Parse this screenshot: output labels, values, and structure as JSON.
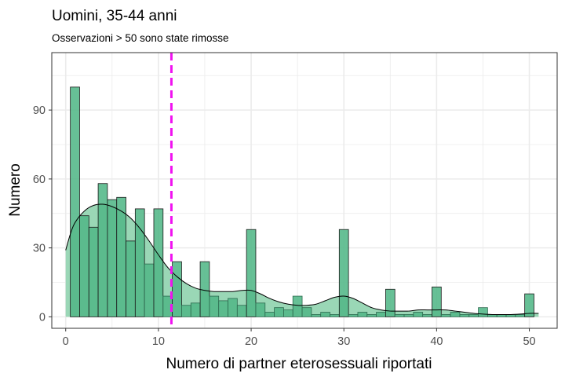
{
  "chart_data": {
    "type": "histogram",
    "title": "Uomini, 35-44 anni",
    "subtitle": "Osservazioni > 50 sono state rimosse",
    "xlabel": "Numero di partner eterosessuali riportati",
    "ylabel": "Numero",
    "xlim": [
      -1.5,
      53
    ],
    "ylim": [
      -5,
      115
    ],
    "x_ticks": [
      0,
      10,
      20,
      30,
      40,
      50
    ],
    "y_ticks": [
      0,
      30,
      60,
      90
    ],
    "x_tick_labels": [
      "0",
      "10",
      "20",
      "30",
      "40",
      "50"
    ],
    "y_tick_labels": [
      "0",
      "30",
      "60",
      "90"
    ],
    "bin_width": 1,
    "bins": [
      {
        "x": 1,
        "count": 100
      },
      {
        "x": 2,
        "count": 44
      },
      {
        "x": 3,
        "count": 39
      },
      {
        "x": 4,
        "count": 58
      },
      {
        "x": 5,
        "count": 51
      },
      {
        "x": 6,
        "count": 52
      },
      {
        "x": 7,
        "count": 33
      },
      {
        "x": 8,
        "count": 47
      },
      {
        "x": 9,
        "count": 23
      },
      {
        "x": 10,
        "count": 47
      },
      {
        "x": 11,
        "count": 9
      },
      {
        "x": 12,
        "count": 24
      },
      {
        "x": 13,
        "count": 5
      },
      {
        "x": 14,
        "count": 6
      },
      {
        "x": 15,
        "count": 24
      },
      {
        "x": 16,
        "count": 9
      },
      {
        "x": 17,
        "count": 7
      },
      {
        "x": 18,
        "count": 8
      },
      {
        "x": 19,
        "count": 5
      },
      {
        "x": 20,
        "count": 38
      },
      {
        "x": 21,
        "count": 6
      },
      {
        "x": 22,
        "count": 2
      },
      {
        "x": 23,
        "count": 4
      },
      {
        "x": 24,
        "count": 3
      },
      {
        "x": 25,
        "count": 9
      },
      {
        "x": 26,
        "count": 4
      },
      {
        "x": 27,
        "count": 1
      },
      {
        "x": 28,
        "count": 2
      },
      {
        "x": 29,
        "count": 1
      },
      {
        "x": 30,
        "count": 38
      },
      {
        "x": 31,
        "count": 1
      },
      {
        "x": 32,
        "count": 2
      },
      {
        "x": 33,
        "count": 1
      },
      {
        "x": 34,
        "count": 2
      },
      {
        "x": 35,
        "count": 12
      },
      {
        "x": 36,
        "count": 1
      },
      {
        "x": 37,
        "count": 1
      },
      {
        "x": 38,
        "count": 2
      },
      {
        "x": 39,
        "count": 1
      },
      {
        "x": 40,
        "count": 13
      },
      {
        "x": 41,
        "count": 1
      },
      {
        "x": 42,
        "count": 2
      },
      {
        "x": 43,
        "count": 1
      },
      {
        "x": 44,
        "count": 1
      },
      {
        "x": 45,
        "count": 4
      },
      {
        "x": 46,
        "count": 1
      },
      {
        "x": 47,
        "count": 1
      },
      {
        "x": 48,
        "count": 1
      },
      {
        "x": 49,
        "count": 1
      },
      {
        "x": 50,
        "count": 10
      }
    ],
    "density_curve": [
      {
        "x": 0,
        "y": 29
      },
      {
        "x": 0.5,
        "y": 36
      },
      {
        "x": 1,
        "y": 41
      },
      {
        "x": 2,
        "y": 46
      },
      {
        "x": 3,
        "y": 48.5
      },
      {
        "x": 4,
        "y": 49
      },
      {
        "x": 5,
        "y": 48
      },
      {
        "x": 6,
        "y": 46
      },
      {
        "x": 7,
        "y": 43
      },
      {
        "x": 8,
        "y": 38.5
      },
      {
        "x": 9,
        "y": 33
      },
      {
        "x": 10,
        "y": 27
      },
      {
        "x": 11,
        "y": 21.5
      },
      {
        "x": 12,
        "y": 17.5
      },
      {
        "x": 13,
        "y": 14.5
      },
      {
        "x": 14,
        "y": 12.5
      },
      {
        "x": 15,
        "y": 11.5
      },
      {
        "x": 16,
        "y": 11
      },
      {
        "x": 17,
        "y": 11
      },
      {
        "x": 18,
        "y": 11
      },
      {
        "x": 19,
        "y": 11.5
      },
      {
        "x": 20,
        "y": 11.5
      },
      {
        "x": 21,
        "y": 10
      },
      {
        "x": 22,
        "y": 8
      },
      {
        "x": 23,
        "y": 6.5
      },
      {
        "x": 24,
        "y": 5.5
      },
      {
        "x": 25,
        "y": 5
      },
      {
        "x": 26,
        "y": 5
      },
      {
        "x": 27,
        "y": 5.5
      },
      {
        "x": 28,
        "y": 7
      },
      {
        "x": 29,
        "y": 8.5
      },
      {
        "x": 30,
        "y": 9
      },
      {
        "x": 31,
        "y": 8
      },
      {
        "x": 32,
        "y": 6
      },
      {
        "x": 33,
        "y": 4
      },
      {
        "x": 34,
        "y": 3
      },
      {
        "x": 35,
        "y": 2.5
      },
      {
        "x": 36,
        "y": 2.5
      },
      {
        "x": 37,
        "y": 2.5
      },
      {
        "x": 38,
        "y": 3
      },
      {
        "x": 39,
        "y": 3
      },
      {
        "x": 40,
        "y": 3
      },
      {
        "x": 41,
        "y": 3
      },
      {
        "x": 42,
        "y": 2.5
      },
      {
        "x": 43,
        "y": 2
      },
      {
        "x": 44,
        "y": 1.5
      },
      {
        "x": 45,
        "y": 1.2
      },
      {
        "x": 46,
        "y": 1
      },
      {
        "x": 47,
        "y": 1
      },
      {
        "x": 48,
        "y": 1
      },
      {
        "x": 49,
        "y": 1.2
      },
      {
        "x": 50,
        "y": 1.5
      },
      {
        "x": 51,
        "y": 1.5
      }
    ],
    "reference_line": {
      "x": 11.4,
      "style": "dashed"
    },
    "grid": true,
    "legend": "none",
    "colors": {
      "bar_fill": "#52b788",
      "bar_stroke": "#2d6a4f",
      "density_fill": "#95d5b2",
      "density_stroke": "#000000",
      "reference_line": "#f012f0",
      "grid": "#ebebeb",
      "panel_border": "#333333"
    }
  }
}
